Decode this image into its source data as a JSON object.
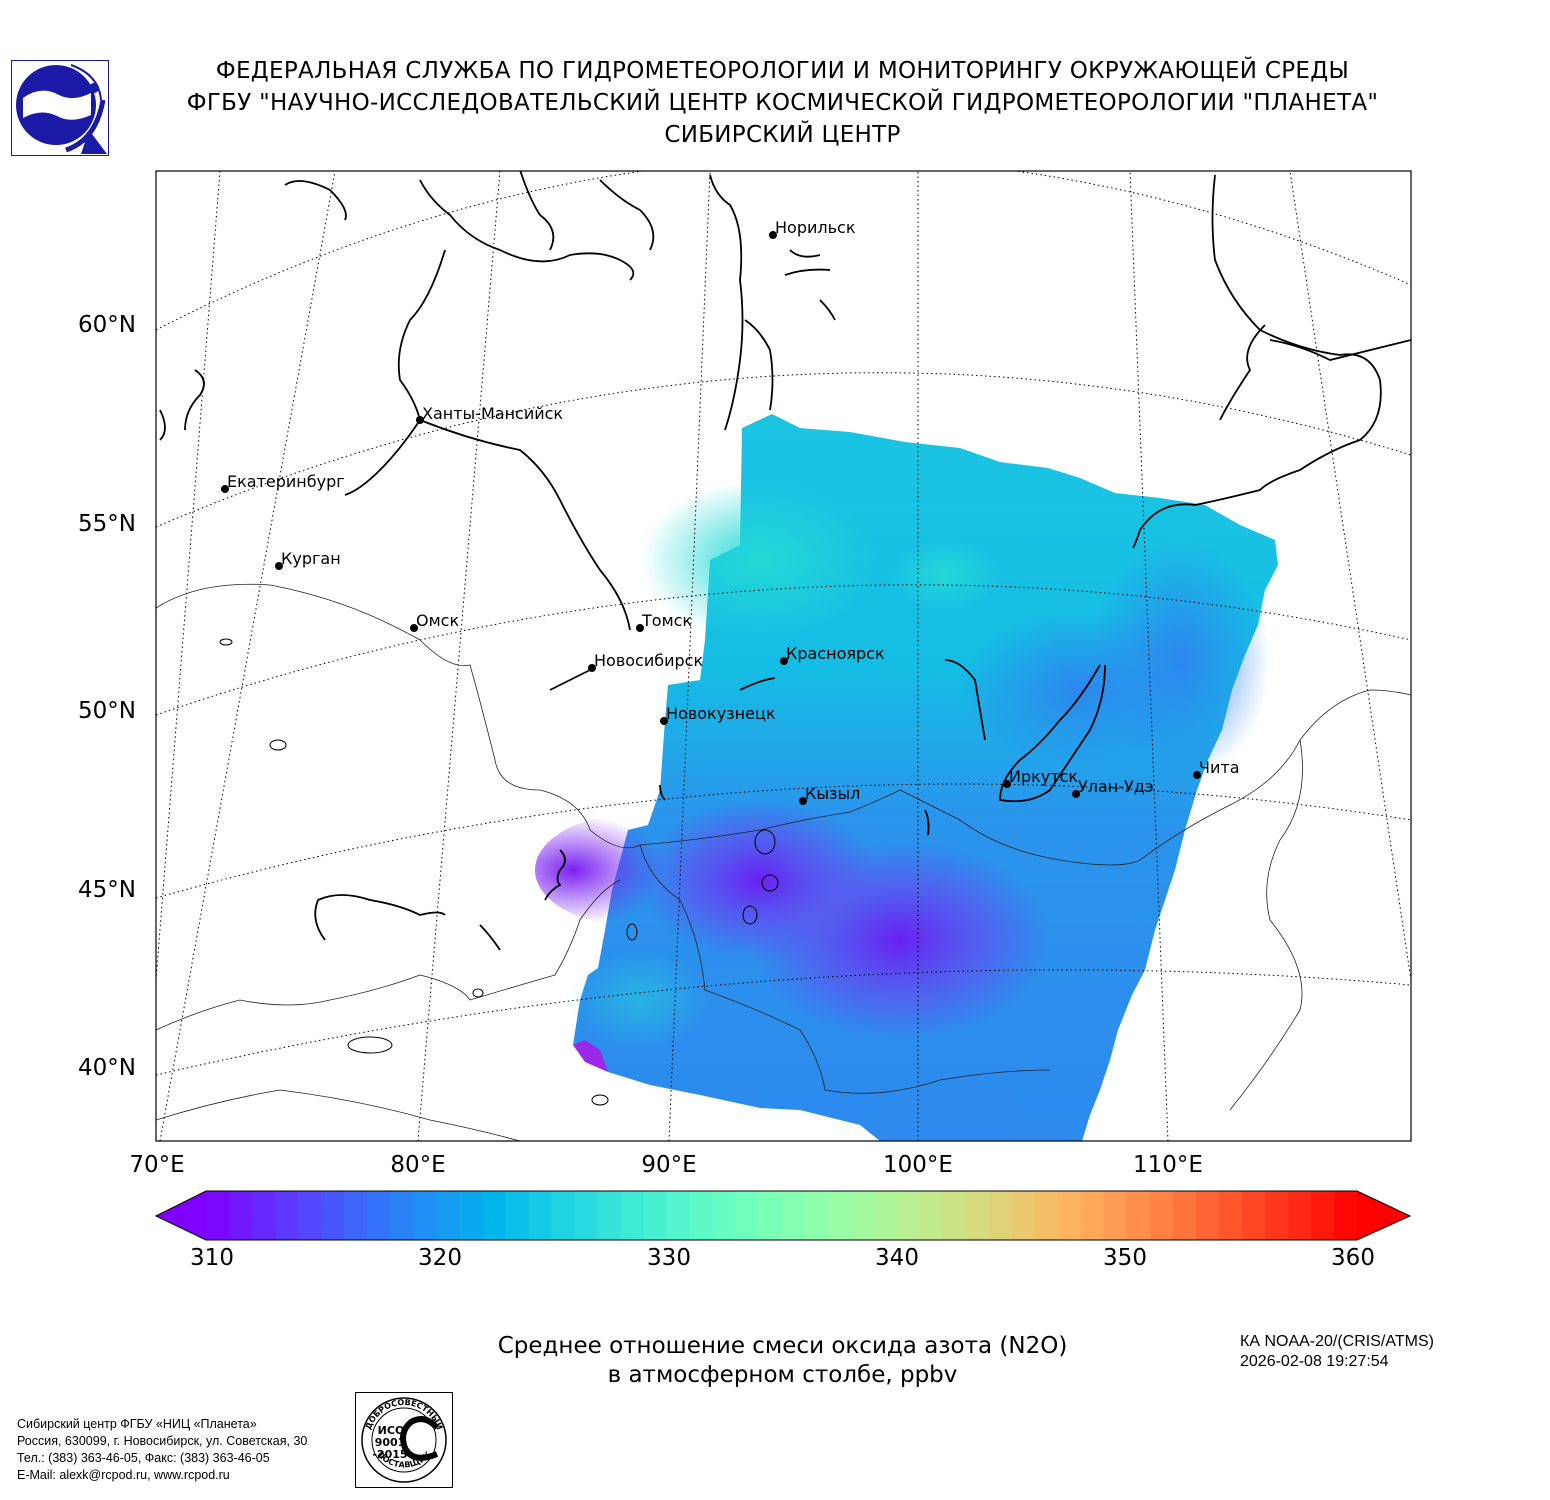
{
  "header": {
    "line1": "ФЕДЕРАЛЬНАЯ СЛУЖБА ПО ГИДРОМЕТЕОРОЛОГИИ И МОНИТОРИНГУ ОКРУЖАЮЩЕЙ СРЕДЫ",
    "line2": "ФГБУ \"НАУЧНО-ИССЛЕДОВАТЕЛЬСКИЙ ЦЕНТР КОСМИЧЕСКОЙ ГИДРОМЕТЕОРОЛОГИИ \"ПЛАНЕТА\"",
    "line3": "СИБИРСКИЙ ЦЕНТР"
  },
  "map": {
    "latitude_labels": [
      "60°N",
      "55°N",
      "50°N",
      "45°N",
      "40°N"
    ],
    "longitude_labels": [
      "70°E",
      "80°E",
      "90°E",
      "100°E",
      "110°E"
    ],
    "cities": [
      {
        "name": "Норильск"
      },
      {
        "name": "Ханты-Мансийск"
      },
      {
        "name": "Екатеринбург"
      },
      {
        "name": "Курган"
      },
      {
        "name": "Омск"
      },
      {
        "name": "Томск"
      },
      {
        "name": "Новосибирск"
      },
      {
        "name": "Красноярск"
      },
      {
        "name": "Новокузнецк"
      },
      {
        "name": "Кызыл"
      },
      {
        "name": "Иркутск"
      },
      {
        "name": "Улан-Удэ"
      },
      {
        "name": "Чита"
      }
    ]
  },
  "colorbar": {
    "min": 310,
    "max": 360,
    "ticks": [
      "310",
      "320",
      "330",
      "340",
      "350",
      "360"
    ],
    "colormap": "rainbow",
    "extend": "both"
  },
  "caption": {
    "line1": "Среднее отношение смеси оксида азота (N2O)",
    "line2": "в атмосферном столбе, ppbv"
  },
  "satellite": {
    "name": "КА NOAA-20/(CRIS/ATMS)",
    "datetime": "2026-02-08 19:27:54"
  },
  "footer": {
    "line1": "Сибирский центр ФГБУ «НИЦ «Планета»",
    "line2": "Россия, 630099, г. Новосибирск, ул. Советская, 30",
    "line3": "Тел.: (383) 363-46-05, Факс: (383) 363-46-05",
    "line4": "E-Mail: alexk@rcpod.ru, www.rcpod.ru"
  },
  "iso_badge": {
    "top": "ДОБРОСОВЕСТНЫЙ",
    "middle1": "ИСО",
    "middle2": "9001",
    "middle3": "-2015",
    "bottom": "ПОСТАВЩИК"
  },
  "colors": {
    "logo_blue": "#1a1aa6",
    "low": "#8000ff",
    "high": "#ff0000"
  }
}
